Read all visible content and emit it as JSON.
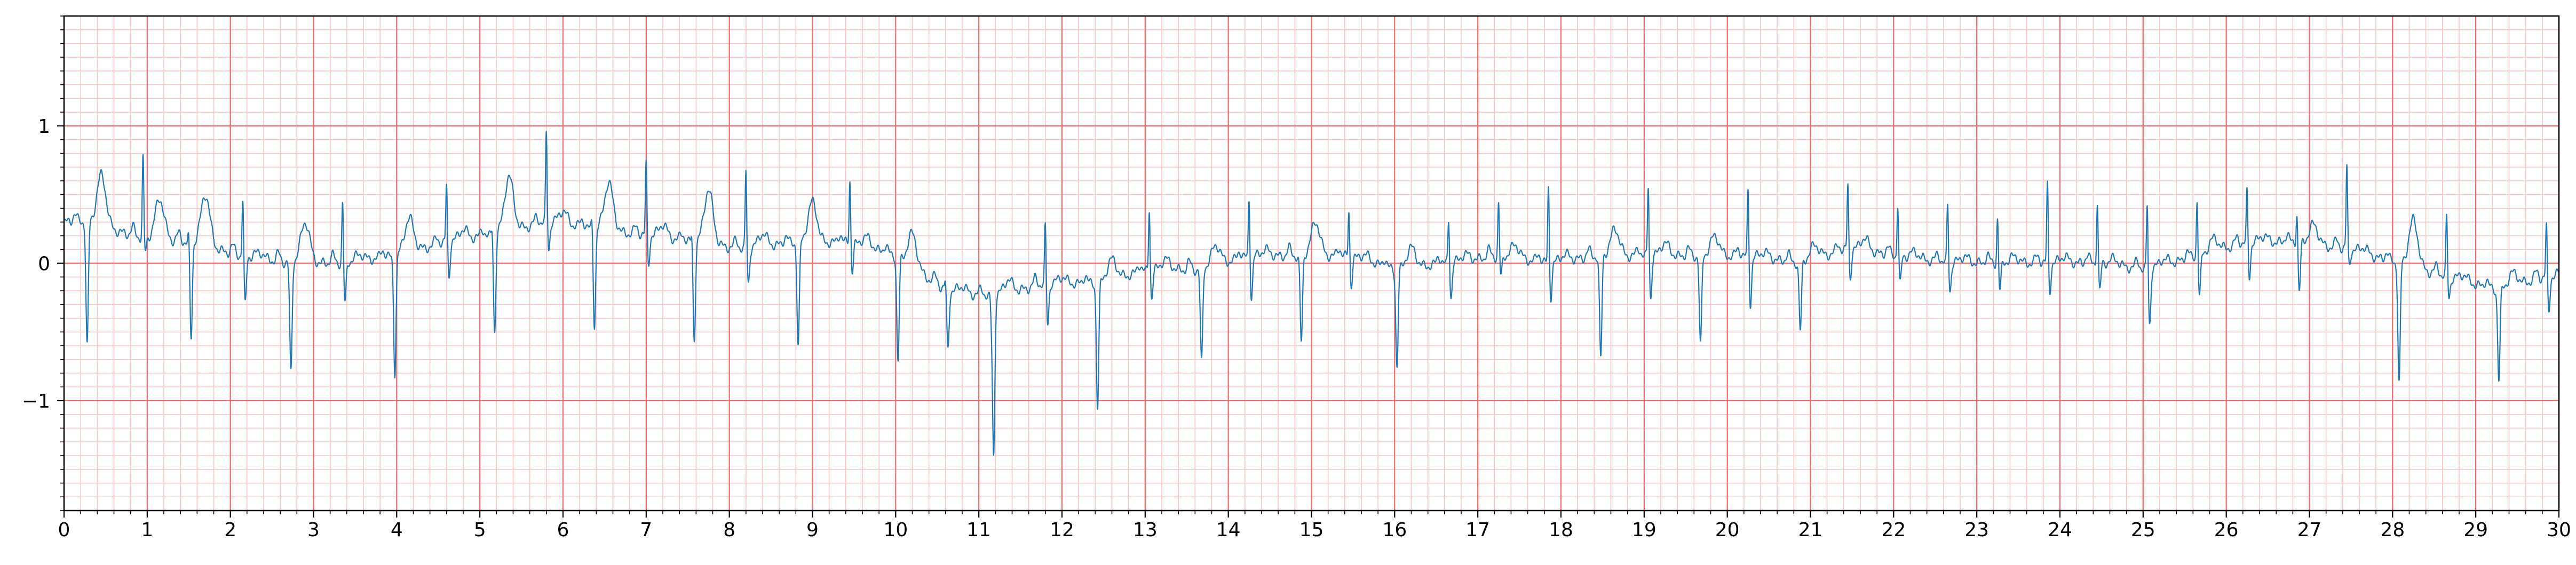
{
  "chart_data": {
    "type": "line",
    "title": "",
    "xlabel": "",
    "ylabel": "",
    "xlim": [
      0,
      30
    ],
    "ylim": [
      -1.8,
      1.8
    ],
    "x_ticks": [
      "0",
      "1",
      "2",
      "3",
      "4",
      "5",
      "6",
      "7",
      "8",
      "9",
      "10",
      "11",
      "12",
      "13",
      "14",
      "15",
      "16",
      "17",
      "18",
      "19",
      "20",
      "21",
      "22",
      "23",
      "24",
      "25",
      "26",
      "27",
      "28",
      "29",
      "30"
    ],
    "y_ticks": [
      {
        "value": 1,
        "label": "1"
      },
      {
        "value": 0,
        "label": "0"
      },
      {
        "value": -1,
        "label": "−1"
      }
    ],
    "x_minor_step": 0.2,
    "y_minor_step": 0.1,
    "grid": {
      "major": true,
      "minor": true,
      "major_color": "#f06b6b",
      "minor_color": "#f7c4c4"
    },
    "line_color": "#1f77b4",
    "beats": [
      {
        "t": 0.25,
        "r": 0.0,
        "s": -0.9,
        "tw": 0.38,
        "base": 0.3
      },
      {
        "t": 0.95,
        "r": 0.6,
        "s": -0.1,
        "tw": 0.3,
        "base": 0.18
      },
      {
        "t": 1.5,
        "r": 0.1,
        "s": -0.7,
        "tw": 0.38,
        "base": 0.15
      },
      {
        "t": 2.15,
        "r": 0.45,
        "s": -0.35,
        "tw": 0.05,
        "base": 0.05
      },
      {
        "t": 2.7,
        "r": 0.0,
        "s": -0.8,
        "tw": 0.3,
        "base": 0.0
      },
      {
        "t": 3.35,
        "r": 0.47,
        "s": -0.3,
        "tw": 0.05,
        "base": 0.0
      },
      {
        "t": 3.95,
        "r": 0.0,
        "s": -0.85,
        "tw": 0.25,
        "base": 0.05
      },
      {
        "t": 4.6,
        "r": 0.45,
        "s": -0.25,
        "tw": 0.08,
        "base": 0.15
      },
      {
        "t": 5.15,
        "r": 0.1,
        "s": -0.7,
        "tw": 0.4,
        "base": 0.2
      },
      {
        "t": 5.8,
        "r": 0.67,
        "s": -0.2,
        "tw": 0.1,
        "base": 0.3
      },
      {
        "t": 6.35,
        "r": 0.1,
        "s": -0.7,
        "tw": 0.35,
        "base": 0.25
      },
      {
        "t": 7.0,
        "r": 0.55,
        "s": -0.2,
        "tw": 0.1,
        "base": 0.2
      },
      {
        "t": 7.55,
        "r": 0.1,
        "s": -0.7,
        "tw": 0.4,
        "base": 0.15
      },
      {
        "t": 8.2,
        "r": 0.6,
        "s": -0.25,
        "tw": 0.1,
        "base": 0.1
      },
      {
        "t": 8.8,
        "r": 0.0,
        "s": -0.75,
        "tw": 0.3,
        "base": 0.15
      },
      {
        "t": 9.45,
        "r": 0.48,
        "s": -0.2,
        "tw": 0.08,
        "base": 0.15
      },
      {
        "t": 10.0,
        "r": 0.0,
        "s": -0.75,
        "tw": 0.25,
        "base": 0.05
      },
      {
        "t": 10.6,
        "r": 0.1,
        "s": -0.42,
        "tw": 0.05,
        "base": -0.2
      },
      {
        "t": 11.15,
        "r": -0.1,
        "s": -1.15,
        "tw": 0.1,
        "base": -0.25
      },
      {
        "t": 11.8,
        "r": 0.45,
        "s": -0.3,
        "tw": 0.05,
        "base": -0.15
      },
      {
        "t": 12.4,
        "r": 0.0,
        "s": -0.9,
        "tw": 0.15,
        "base": -0.15
      },
      {
        "t": 13.05,
        "r": 0.47,
        "s": -0.2,
        "tw": 0.08,
        "base": -0.05
      },
      {
        "t": 13.65,
        "r": 0.0,
        "s": -0.68,
        "tw": 0.15,
        "base": -0.05
      },
      {
        "t": 14.25,
        "r": 0.45,
        "s": -0.3,
        "tw": 0.05,
        "base": 0.05
      },
      {
        "t": 14.85,
        "r": 0.0,
        "s": -0.63,
        "tw": 0.25,
        "base": 0.05
      },
      {
        "t": 15.45,
        "r": 0.35,
        "s": -0.2,
        "tw": 0.05,
        "base": 0.05
      },
      {
        "t": 16.0,
        "r": 0.0,
        "s": -0.7,
        "tw": 0.15,
        "base": -0.05
      },
      {
        "t": 16.65,
        "r": 0.35,
        "s": -0.25,
        "tw": 0.05,
        "base": 0.0
      },
      {
        "t": 17.25,
        "r": 0.4,
        "s": -0.15,
        "tw": 0.1,
        "base": 0.05
      },
      {
        "t": 17.85,
        "r": 0.58,
        "s": -0.25,
        "tw": 0.05,
        "base": 0.0
      },
      {
        "t": 18.45,
        "r": 0.0,
        "s": -0.75,
        "tw": 0.2,
        "base": 0.05
      },
      {
        "t": 19.05,
        "r": 0.55,
        "s": -0.3,
        "tw": 0.1,
        "base": 0.05
      },
      {
        "t": 19.65,
        "r": 0.0,
        "s": -0.65,
        "tw": 0.15,
        "base": 0.05
      },
      {
        "t": 20.25,
        "r": 0.52,
        "s": -0.35,
        "tw": 0.05,
        "base": 0.05
      },
      {
        "t": 20.85,
        "r": 0.0,
        "s": -0.5,
        "tw": 0.1,
        "base": 0.0
      },
      {
        "t": 21.45,
        "r": 0.5,
        "s": -0.2,
        "tw": 0.1,
        "base": 0.1
      },
      {
        "t": 22.05,
        "r": 0.4,
        "s": -0.2,
        "tw": 0.05,
        "base": 0.05
      },
      {
        "t": 22.65,
        "r": 0.45,
        "s": -0.2,
        "tw": 0.05,
        "base": 0.0
      },
      {
        "t": 23.25,
        "r": 0.35,
        "s": -0.2,
        "tw": 0.05,
        "base": 0.0
      },
      {
        "t": 23.85,
        "r": 0.6,
        "s": -0.2,
        "tw": 0.05,
        "base": 0.0
      },
      {
        "t": 24.45,
        "r": 0.47,
        "s": -0.2,
        "tw": 0.05,
        "base": 0.0
      },
      {
        "t": 25.05,
        "r": 0.52,
        "s": -0.4,
        "tw": 0.05,
        "base": -0.05
      },
      {
        "t": 25.65,
        "r": 0.45,
        "s": -0.3,
        "tw": 0.1,
        "base": 0.05
      },
      {
        "t": 26.25,
        "r": 0.4,
        "s": -0.25,
        "tw": 0.05,
        "base": 0.15
      },
      {
        "t": 26.85,
        "r": 0.25,
        "s": -0.35,
        "tw": 0.15,
        "base": 0.15
      },
      {
        "t": 27.45,
        "r": 0.62,
        "s": -0.1,
        "tw": 0.05,
        "base": 0.1
      },
      {
        "t": 28.05,
        "r": 0.0,
        "s": -0.87,
        "tw": 0.35,
        "base": 0.0
      },
      {
        "t": 28.65,
        "r": 0.45,
        "s": -0.15,
        "tw": 0.05,
        "base": -0.1
      },
      {
        "t": 29.25,
        "r": 0.0,
        "s": -0.65,
        "tw": 0.1,
        "base": -0.2
      },
      {
        "t": 29.85,
        "r": 0.4,
        "s": -0.25,
        "tw": 0.05,
        "base": -0.1
      }
    ]
  }
}
